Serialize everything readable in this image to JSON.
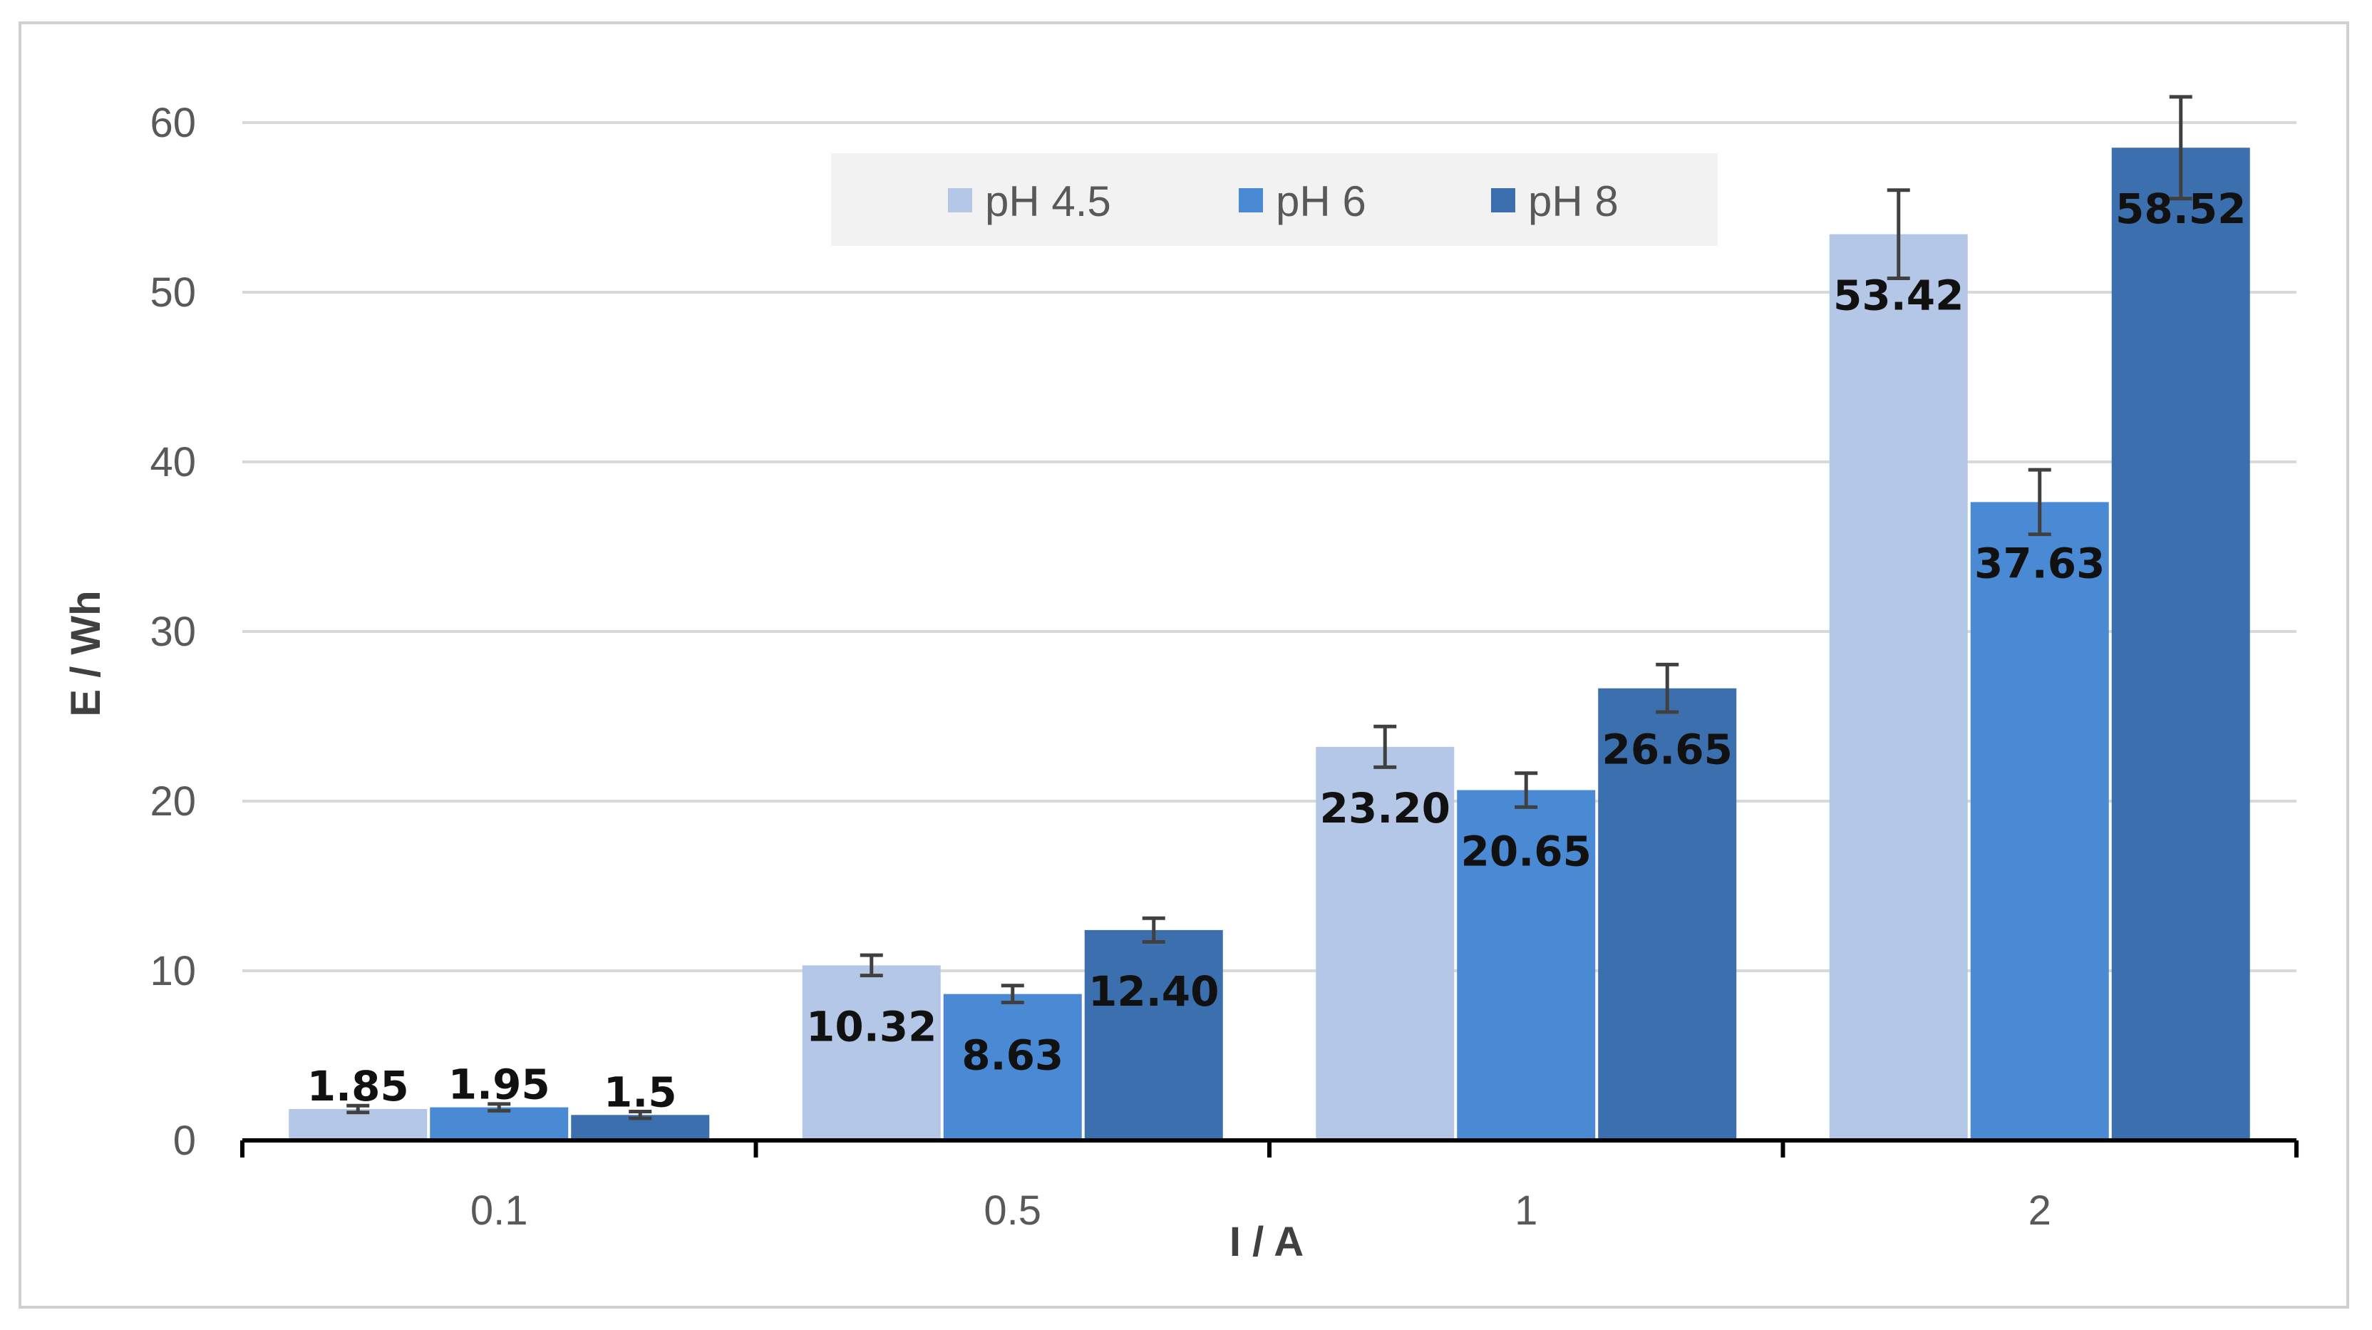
{
  "chart_data": {
    "type": "bar",
    "title": "",
    "xlabel": "I / A",
    "ylabel": "E / Wh",
    "categories": [
      "0.1",
      "0.5",
      "1",
      "2"
    ],
    "ylim": [
      0,
      60
    ],
    "yticks": [
      0,
      10,
      20,
      30,
      40,
      50,
      60
    ],
    "grid": true,
    "legend_position": "top-center",
    "series": [
      {
        "name": "pH 4.5",
        "color": "#b4c7e7",
        "values": [
          1.85,
          10.32,
          23.2,
          53.42
        ],
        "labels": [
          "1.85",
          "10.32",
          "23.20",
          "53.42"
        ],
        "errors": [
          0.2,
          0.6,
          1.2,
          2.6
        ]
      },
      {
        "name": "pH 6",
        "color": "#4a8ad4",
        "values": [
          1.95,
          8.63,
          20.65,
          37.63
        ],
        "labels": [
          "1.95",
          "8.63",
          "20.65",
          "37.63"
        ],
        "errors": [
          0.2,
          0.5,
          1.0,
          1.9
        ]
      },
      {
        "name": "pH 8",
        "color": "#3b6fae",
        "values": [
          1.5,
          12.4,
          26.65,
          58.52
        ],
        "labels": [
          "1.5",
          "12.40",
          "26.65",
          "58.52"
        ],
        "errors": [
          0.2,
          0.7,
          1.4,
          3.0
        ]
      }
    ]
  }
}
